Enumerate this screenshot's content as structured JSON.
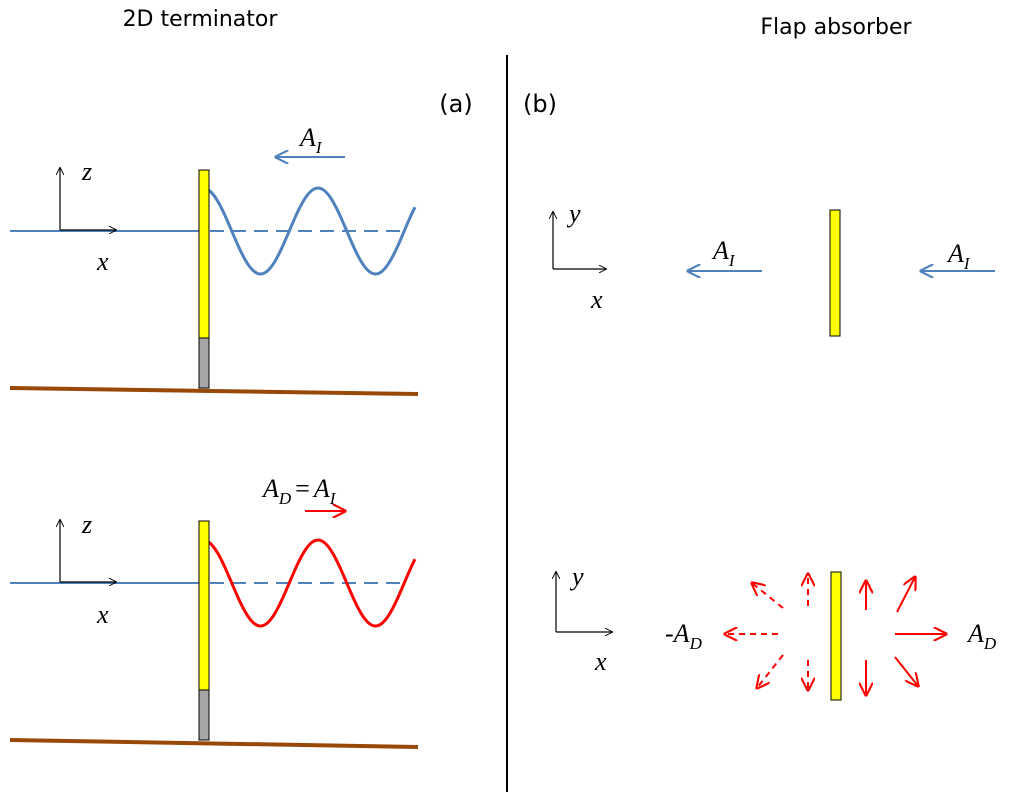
{
  "panels": [
    {
      "title": "2D terminator",
      "tag": "(a)"
    },
    {
      "title": "Flap absorber",
      "tag": "(b)"
    }
  ],
  "left": {
    "top": {
      "axis_z": "z",
      "axis_x": "x",
      "wave": {
        "main": "A",
        "sub": "I"
      }
    },
    "bottom": {
      "axis_z": "z",
      "axis_x": "x",
      "wave": {
        "lhs_main": "A",
        "lhs_sub": "D",
        "op": "=",
        "rhs_main": "A",
        "rhs_sub": "I"
      }
    }
  },
  "right": {
    "top": {
      "axis_y": "y",
      "axis_x": "x",
      "left_wave": {
        "main": "A",
        "sub": "I"
      },
      "right_wave": {
        "main": "A",
        "sub": "I"
      }
    },
    "bottom": {
      "axis_y": "y",
      "axis_x": "x",
      "left_wave": {
        "prefix": "-",
        "main": "A",
        "sub": "D"
      },
      "right_wave": {
        "main": "A",
        "sub": "D"
      }
    }
  }
}
